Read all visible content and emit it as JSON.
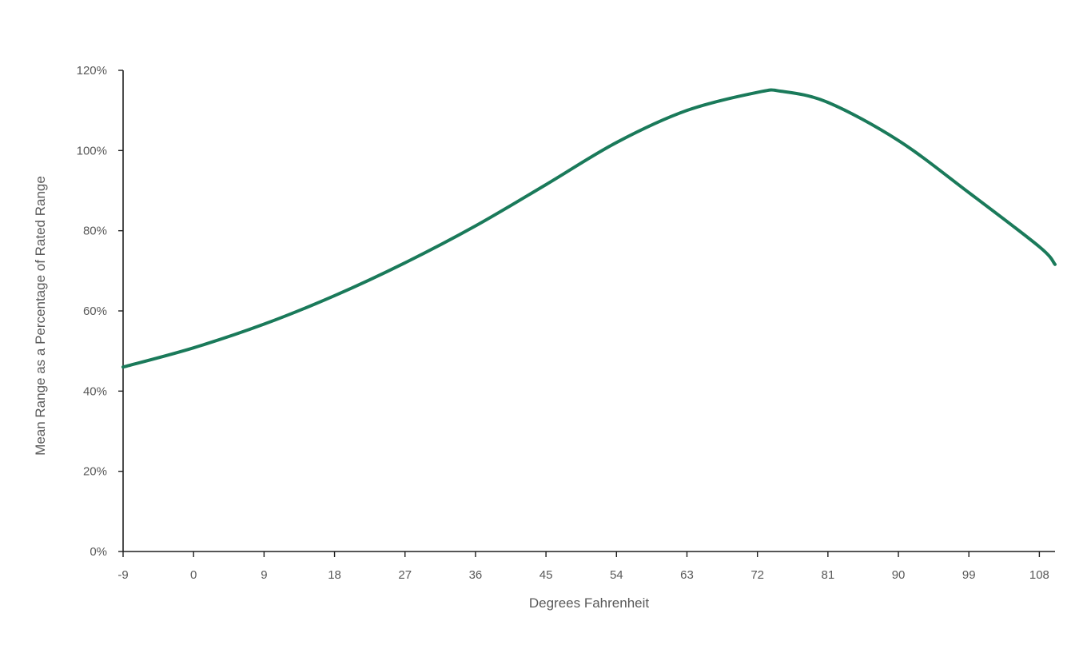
{
  "chart_data": {
    "type": "line",
    "title": "",
    "xlabel": "Degrees Fahrenheit",
    "ylabel": "Mean Range as a Percentage of Rated Range",
    "xlim": [
      -9,
      110
    ],
    "ylim": [
      0,
      1.2
    ],
    "x_ticks": [
      -9,
      0,
      9,
      18,
      27,
      36,
      45,
      54,
      63,
      72,
      81,
      90,
      99,
      108
    ],
    "y_ticks": [
      0,
      0.2,
      0.4,
      0.6,
      0.8,
      1.0,
      1.2
    ],
    "x_tick_labels": [
      "-9",
      "0",
      "9",
      "18",
      "27",
      "36",
      "45",
      "54",
      "63",
      "72",
      "81",
      "90",
      "99",
      "108"
    ],
    "y_tick_labels": [
      "0%",
      "20%",
      "40%",
      "60%",
      "80%",
      "100%",
      "120%"
    ],
    "grid": false,
    "legend": "none",
    "series": [
      {
        "color": "#1a7a5a",
        "x": [
          -9,
          0,
          9,
          18,
          27,
          36,
          45,
          54,
          63,
          72,
          75,
          81,
          90,
          99,
          108,
          110
        ],
        "y": [
          0.46,
          0.508,
          0.567,
          0.638,
          0.72,
          0.812,
          0.915,
          1.02,
          1.1,
          1.145,
          1.148,
          1.12,
          1.025,
          0.895,
          0.76,
          0.716
        ]
      }
    ]
  }
}
